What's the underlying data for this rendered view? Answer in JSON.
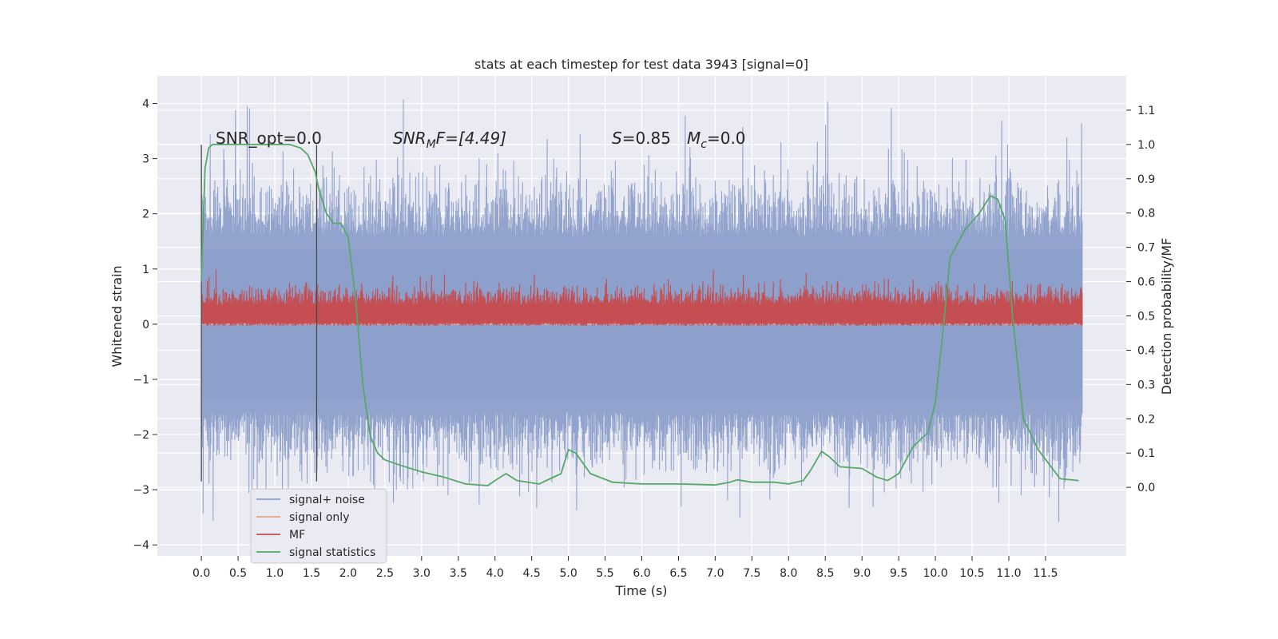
{
  "chart_data": {
    "type": "line",
    "title": "stats at each timestep for test data 3943 [signal=0]",
    "xlabel": "Time (s)",
    "ylabel_left": "Whitened strain",
    "ylabel_right": "Detection probability/MF",
    "xlim": [
      -0.6,
      12.6
    ],
    "ylim_left": [
      -4.2,
      4.5
    ],
    "ylim_right": [
      -0.2,
      1.2
    ],
    "x_ticks": [
      "0.0",
      "0.5",
      "1.0",
      "1.5",
      "2.0",
      "2.5",
      "3.0",
      "3.5",
      "4.0",
      "4.5",
      "5.0",
      "5.5",
      "6.0",
      "6.5",
      "7.0",
      "7.5",
      "8.0",
      "8.5",
      "9.0",
      "9.5",
      "10.0",
      "10.5",
      "11.0",
      "11.5"
    ],
    "y_ticks_left": [
      "4",
      "3",
      "2",
      "1",
      "0",
      "−1",
      "−2",
      "−3",
      "−4"
    ],
    "y_ticks_right": [
      "1.1",
      "1.0",
      "0.9",
      "0.8",
      "0.7",
      "0.6",
      "0.5",
      "0.4",
      "0.3",
      "0.2",
      "0.1",
      "0.0"
    ],
    "grid": true,
    "legend_placement": "lower-left",
    "series": [
      {
        "name": "signal+ noise",
        "color": "#8da0cb",
        "axis": "left",
        "description_band": {
          "x_range": [
            0.0,
            12.0
          ],
          "typical_envelope": [
            -1.6,
            1.6
          ],
          "extreme_max": 4.1,
          "extreme_min": -3.6
        }
      },
      {
        "name": "signal only",
        "color": "#e9a487",
        "axis": "left",
        "values_constant": 0.0
      },
      {
        "name": "MF",
        "color": "#c44e52",
        "axis": "left",
        "description_band": {
          "x_range": [
            0.0,
            12.0
          ],
          "baseline": 0.1,
          "typical_max": 0.5,
          "extreme_max": 1.0
        }
      },
      {
        "name": "signal statistics",
        "color": "#55a868",
        "axis": "right",
        "x": [
          0.0,
          0.05,
          0.1,
          0.15,
          0.2,
          0.3,
          0.5,
          0.8,
          1.0,
          1.2,
          1.35,
          1.45,
          1.55,
          1.6,
          1.7,
          1.8,
          1.9,
          2.0,
          2.1,
          2.2,
          2.3,
          2.4,
          2.5,
          2.7,
          3.0,
          3.3,
          3.6,
          3.9,
          4.0,
          4.15,
          4.3,
          4.6,
          4.9,
          5.0,
          5.1,
          5.3,
          5.6,
          6.0,
          6.5,
          7.0,
          7.2,
          7.3,
          7.5,
          7.8,
          8.0,
          8.2,
          8.3,
          8.45,
          8.55,
          8.7,
          9.0,
          9.2,
          9.35,
          9.5,
          9.7,
          9.9,
          10.0,
          10.1,
          10.2,
          10.4,
          10.6,
          10.75,
          10.85,
          10.95,
          11.05,
          11.2,
          11.4,
          11.7,
          11.95
        ],
        "values": [
          0.6,
          0.93,
          0.99,
          1.0,
          1.0,
          1.0,
          1.0,
          1.0,
          1.0,
          1.0,
          0.99,
          0.97,
          0.92,
          0.87,
          0.8,
          0.77,
          0.77,
          0.73,
          0.55,
          0.3,
          0.15,
          0.1,
          0.08,
          0.065,
          0.045,
          0.03,
          0.01,
          0.005,
          0.02,
          0.04,
          0.02,
          0.01,
          0.04,
          0.11,
          0.1,
          0.04,
          0.015,
          0.01,
          0.01,
          0.007,
          0.015,
          0.022,
          0.015,
          0.015,
          0.01,
          0.02,
          0.05,
          0.105,
          0.09,
          0.06,
          0.055,
          0.03,
          0.02,
          0.04,
          0.12,
          0.16,
          0.25,
          0.45,
          0.67,
          0.75,
          0.8,
          0.85,
          0.84,
          0.78,
          0.5,
          0.2,
          0.11,
          0.025,
          0.02
        ]
      }
    ],
    "vertical_markers": [
      {
        "x": 0.0,
        "y_range": [
          -2.85,
          3.25
        ],
        "color": "#4a4a4a"
      },
      {
        "x": 1.57,
        "y_range": [
          -2.85,
          3.25
        ],
        "color": "#4a4a4a"
      }
    ],
    "annotations": {
      "snr_opt": "SNR_opt=0.0",
      "snr_mf_main": "SNR",
      "snr_mf_sub": "M",
      "snr_mf_rest": "F=[4.49]",
      "s_main": "S",
      "s_rest": "=0.85",
      "mc_main": "M",
      "mc_sub": "c",
      "mc_rest": "=0.0"
    }
  }
}
